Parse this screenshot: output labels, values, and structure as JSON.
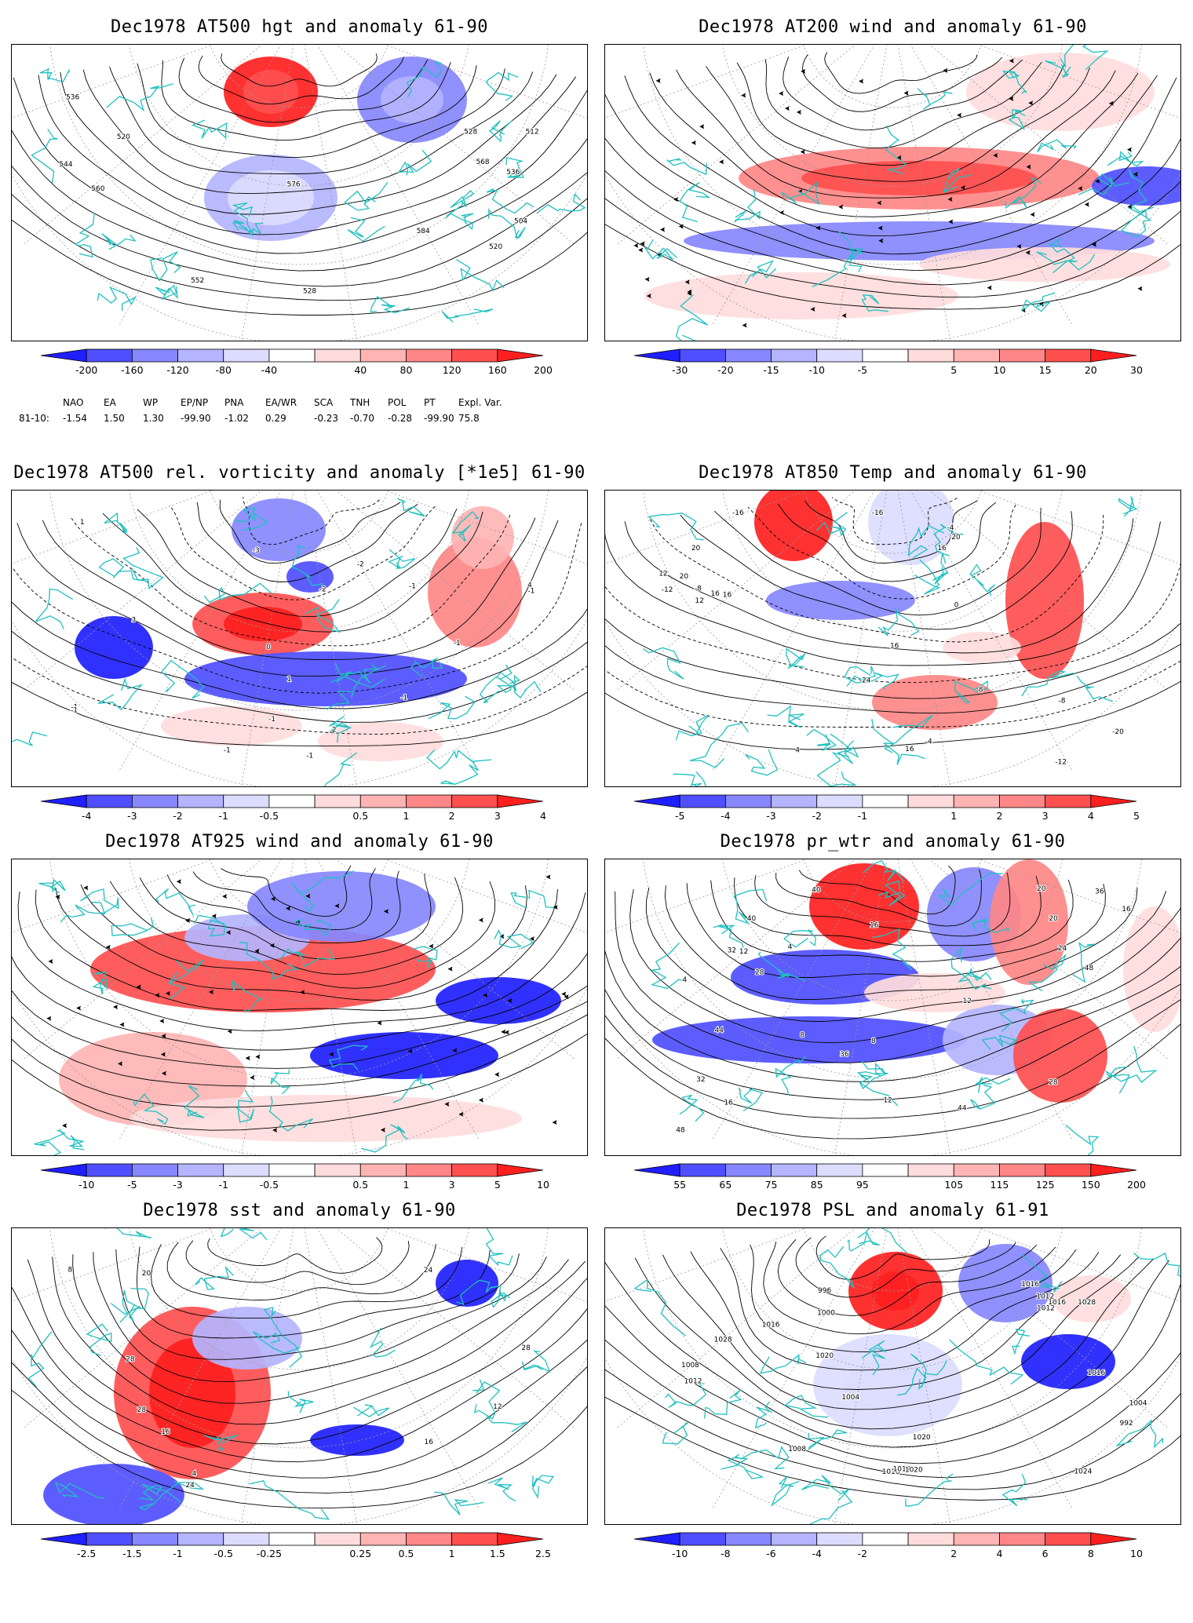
{
  "panels": [
    {
      "title": "Dec1978 AT500 hgt and anomaly 61-90",
      "ticks": [
        "-200",
        "-160",
        "-120",
        "-80",
        "-40",
        "40",
        "80",
        "120",
        "160",
        "200"
      ],
      "contour_labels": [
        "504",
        "512",
        "520",
        "528",
        "536",
        "520",
        "528",
        "536",
        "544",
        "552",
        "560",
        "568",
        "576",
        "584"
      ]
    },
    {
      "title": "Dec1978 AT200 wind and anomaly 61-90",
      "ticks": [
        "-30",
        "-20",
        "-15",
        "-10",
        "-5",
        "5",
        "10",
        "15",
        "20",
        "30"
      ]
    },
    {
      "title": "Dec1978 AT500 rel. vorticity and anomaly [*1e5] 61-90",
      "ticks": [
        "-4",
        "-3",
        "-2",
        "-1",
        "-0.5",
        "0.5",
        "1",
        "2",
        "3",
        "4"
      ],
      "contour_labels": [
        "-2",
        "-3",
        "-1",
        "2",
        "4",
        "3",
        "-1",
        "-2",
        "-1",
        "-1",
        "0",
        "1",
        "-1",
        "-1",
        "1",
        "-1",
        "-1",
        "-1"
      ]
    },
    {
      "title": "Dec1978 AT850 Temp and anomaly 61-90",
      "ticks": [
        "-5",
        "-4",
        "-3",
        "-2",
        "-1",
        "1",
        "2",
        "3",
        "4",
        "5"
      ],
      "contour_labels": [
        "-16",
        "-20",
        "-8",
        "-24",
        "-20",
        "-16",
        "-12",
        "-8",
        "-4",
        "-12",
        "-4",
        "0",
        "4",
        "16",
        "8",
        "12",
        "16",
        "20",
        "16",
        "16",
        "12",
        "20",
        "16"
      ]
    },
    {
      "title": "Dec1978 AT925 wind and anomaly 61-90",
      "ticks": [
        "-10",
        "-5",
        "-3",
        "-1",
        "-0.5",
        "0.5",
        "1",
        "3",
        "5",
        "10"
      ]
    },
    {
      "title": "Dec1978 pr_wtr and anomaly 61-90",
      "ticks": [
        "55",
        "65",
        "75",
        "85",
        "95",
        "105",
        "115",
        "125",
        "150",
        "200"
      ],
      "contour_labels": [
        "44",
        "48",
        "28",
        "32",
        "36",
        "40",
        "4",
        "8",
        "4",
        "12",
        "16",
        "20",
        "24",
        "28",
        "32",
        "36",
        "40",
        "12",
        "16",
        "20",
        "8",
        "16",
        "12",
        "48",
        "44"
      ]
    },
    {
      "title": "Dec1978 sst and anomaly 61-90",
      "ticks": [
        "-2.5",
        "-1.5",
        "-1",
        "-0.5",
        "-0.25",
        "0.25",
        "0.5",
        "1",
        "1.5",
        "2.5"
      ],
      "contour_labels": [
        "28",
        "24",
        "4",
        "8",
        "12",
        "16",
        "20",
        "24",
        "28",
        "16",
        "28"
      ]
    },
    {
      "title": "Dec1978 PSL and anomaly 61-91",
      "ticks": [
        "-10",
        "-8",
        "-6",
        "-4",
        "-2",
        "2",
        "4",
        "6",
        "8",
        "10"
      ],
      "contour_labels": [
        "1012",
        "1016",
        "1020",
        "1024",
        "1028",
        "1016",
        "1008",
        "1012",
        "1004",
        "1000",
        "996",
        "992",
        "1004",
        "1008",
        "1012",
        "1016",
        "1020",
        "1016",
        "1012",
        "1028",
        "1020",
        "1016"
      ]
    }
  ],
  "indices": {
    "headers": [
      "NAO",
      "EA",
      "WP",
      "EP/NP",
      "PNA",
      "EA/WR",
      "SCA",
      "TNH",
      "POL",
      "PT",
      "Expl. Var."
    ],
    "row_label": "81-10:",
    "values": [
      "-1.54",
      "1.50",
      "1.30",
      "-99.90",
      "-1.02",
      "0.29",
      "-0.23",
      "-0.70",
      "-0.28",
      "-99.90",
      "75.8"
    ]
  },
  "colors": {
    "blue": [
      "#1f1fff",
      "#4f4fff",
      "#8787ff",
      "#b4b4ff",
      "#dcdcff"
    ],
    "red": [
      "#ffdcdc",
      "#ffb4b4",
      "#ff8787",
      "#ff4f4f",
      "#ff1f1f"
    ],
    "coast": "#20c0c0",
    "contour": "#000000"
  }
}
